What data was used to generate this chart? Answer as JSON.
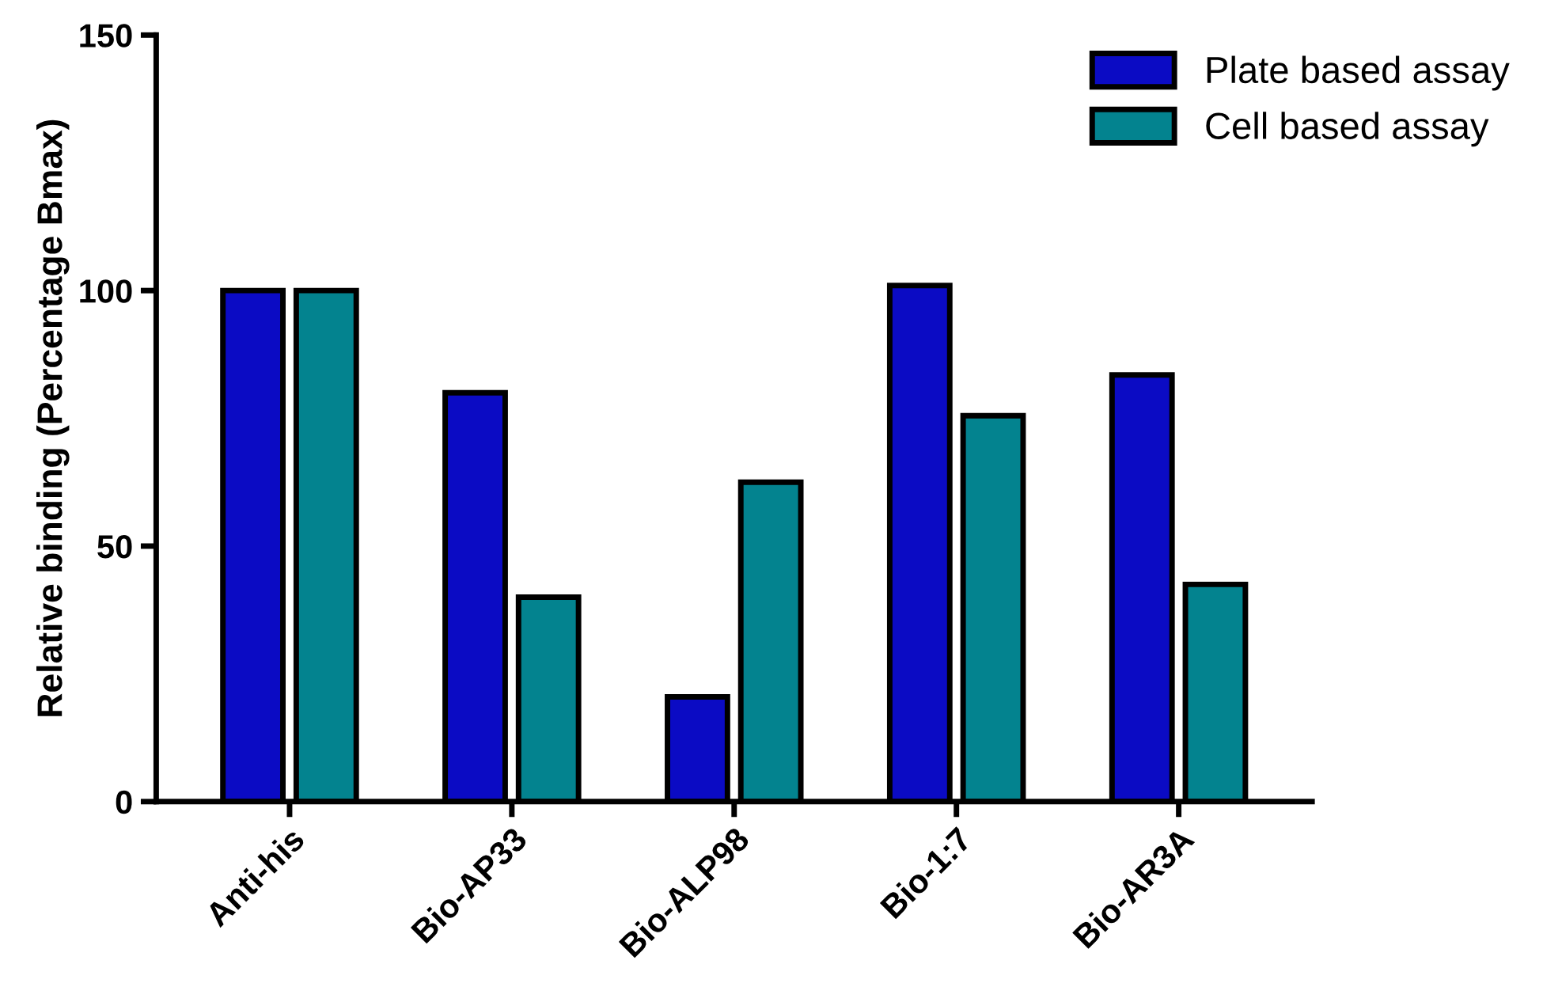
{
  "chart_data": {
    "type": "bar",
    "ylabel": "Relative binding (Percentage Bmax)",
    "categories": [
      "Anti-his",
      "Bio-AP33",
      "Bio-ALP98",
      "Bio-1:7",
      "Bio-AR3A"
    ],
    "series": [
      {
        "name": "Plate based assay",
        "color": "#0b0bc4",
        "values": [
          100,
          80,
          20.5,
          101,
          83.5
        ]
      },
      {
        "name": "Cell based assay",
        "color": "#03838f",
        "values": [
          100,
          40,
          62.5,
          75.5,
          42.5
        ]
      }
    ],
    "ylim": [
      0,
      150
    ],
    "yticks": [
      0,
      50,
      100,
      150
    ],
    "grid": false,
    "legend": "top right"
  }
}
